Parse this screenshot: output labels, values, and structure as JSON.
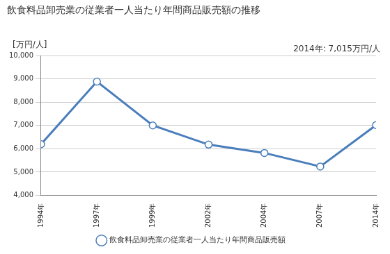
{
  "chart_data": {
    "type": "line",
    "title": "飲食料品卸売業の従業者一人当たり年間商品販売額の推移",
    "annotation": "2014年: 7,015万円/人",
    "y_label": "[万円/人]",
    "categories": [
      "1994年",
      "1997年",
      "1999年",
      "2002年",
      "2004年",
      "2007年",
      "2014年"
    ],
    "series": [
      {
        "name": "飲食料品卸売業の従業者一人当たり年間商品販売額",
        "color": "#4a7ebb",
        "marker": "circle",
        "line_style": "solid",
        "values": [
          6200,
          8880,
          7000,
          6180,
          5820,
          5240,
          7015
        ]
      }
    ],
    "ylim": [
      4000,
      10000
    ],
    "yticks": [
      {
        "value": 4000,
        "label": "4,000"
      },
      {
        "value": 5000,
        "label": "5,000"
      },
      {
        "value": 6000,
        "label": "6,000"
      },
      {
        "value": 7000,
        "label": "7,000"
      },
      {
        "value": 8000,
        "label": "8,000"
      },
      {
        "value": 9000,
        "label": "9,000"
      },
      {
        "value": 10000,
        "label": "10,000"
      }
    ],
    "grid": true,
    "legend": "bottom"
  }
}
